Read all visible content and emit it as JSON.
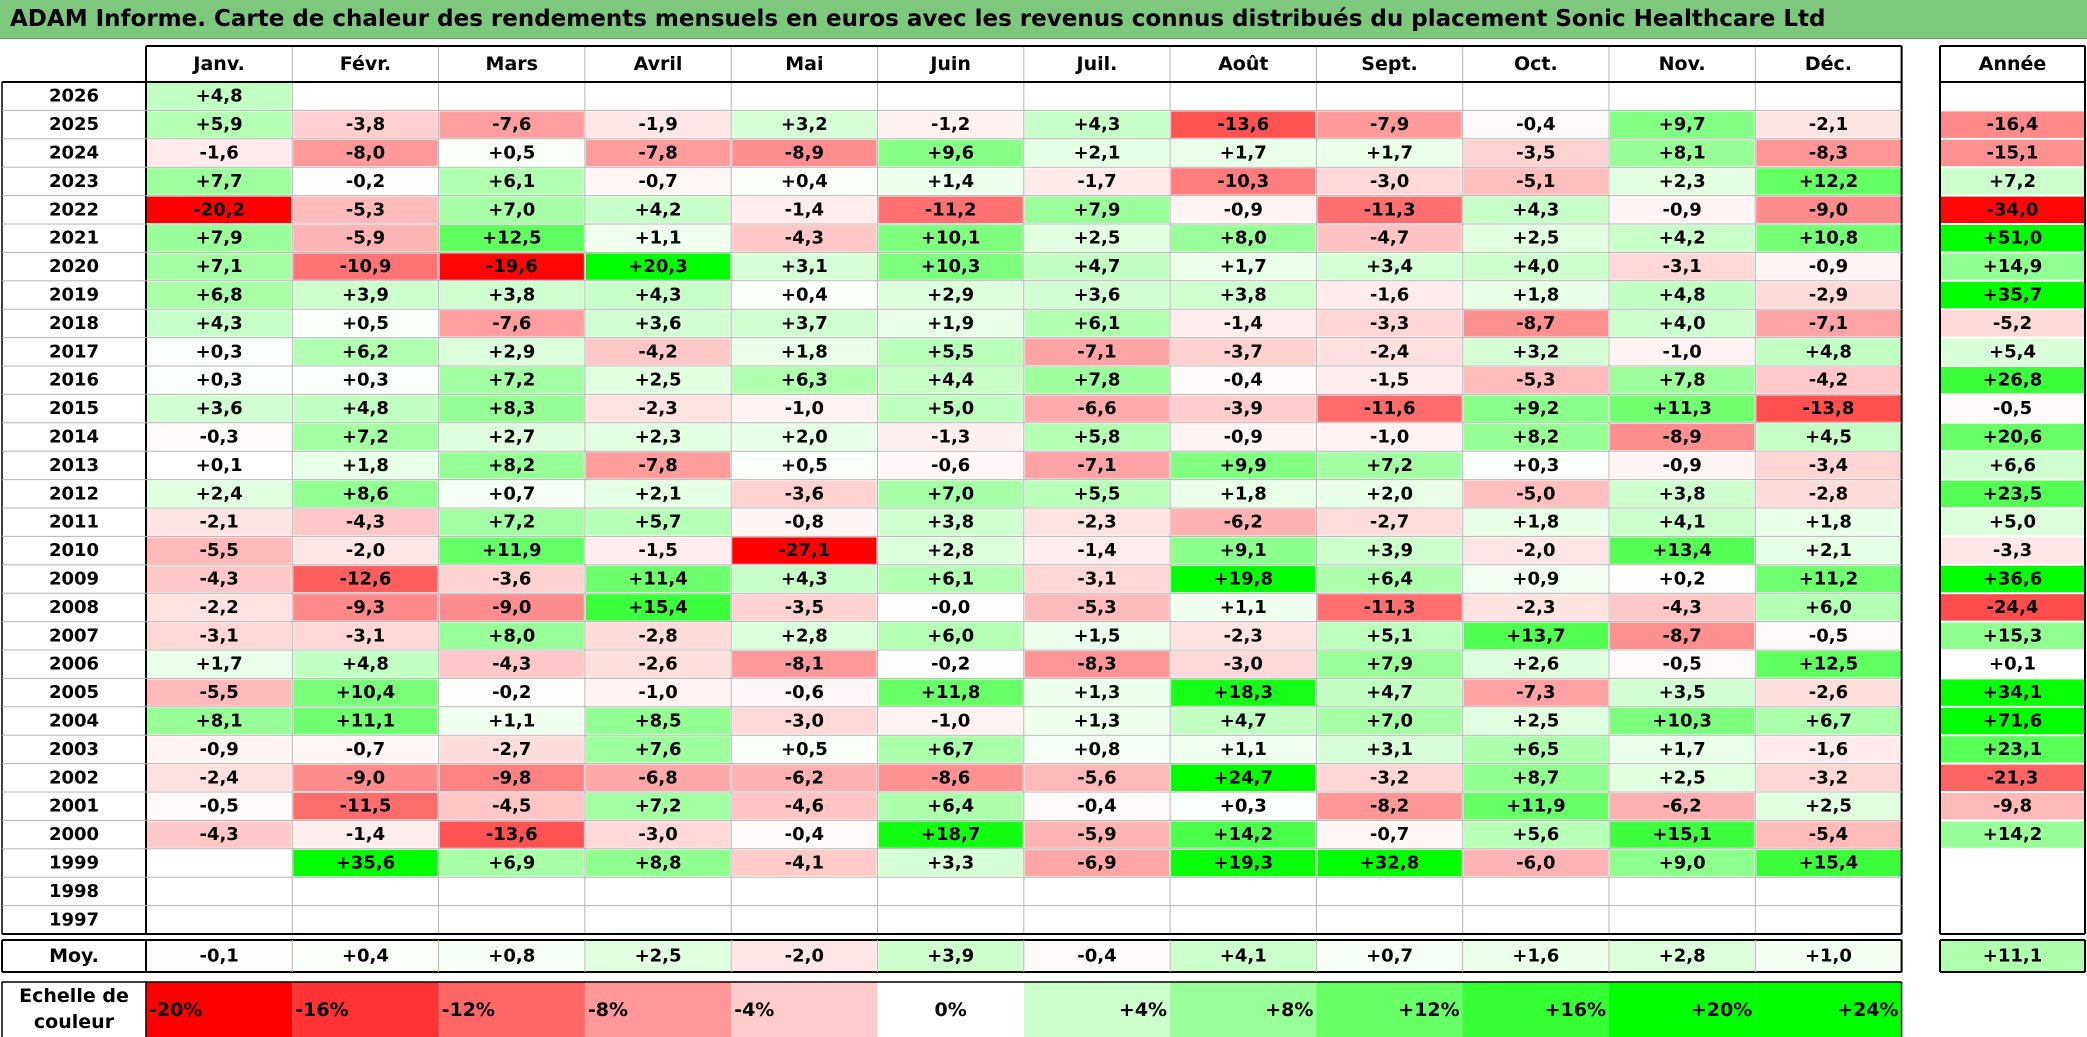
{
  "title": "ADAM Informe. Carte de chaleur des rendements mensuels en euros avec les revenus connus distribués du placement Sonic Healthcare Ltd",
  "chart_data": {
    "type": "heatmap",
    "months": [
      "Janv.",
      "Févr.",
      "Mars",
      "Avril",
      "Mai",
      "Juin",
      "Juil.",
      "Août",
      "Sept.",
      "Oct.",
      "Nov.",
      "Déc."
    ],
    "year_header": "Année",
    "rows": [
      {
        "year": "2026",
        "values": [
          "+4,8",
          "",
          "",
          "",
          "",
          "",
          "",
          "",
          "",
          "",
          "",
          ""
        ],
        "annual": ""
      },
      {
        "year": "2025",
        "values": [
          "+5,9",
          "-3,8",
          "-7,6",
          "-1,9",
          "+3,2",
          "-1,2",
          "+4,3",
          "-13,6",
          "-7,9",
          "-0,4",
          "+9,7",
          "-2,1"
        ],
        "annual": "-16,4"
      },
      {
        "year": "2024",
        "values": [
          "-1,6",
          "-8,0",
          "+0,5",
          "-7,8",
          "-8,9",
          "+9,6",
          "+2,1",
          "+1,7",
          "+1,7",
          "-3,5",
          "+8,1",
          "-8,3"
        ],
        "annual": "-15,1"
      },
      {
        "year": "2023",
        "values": [
          "+7,7",
          "-0,2",
          "+6,1",
          "-0,7",
          "+0,4",
          "+1,4",
          "-1,7",
          "-10,3",
          "-3,0",
          "-5,1",
          "+2,3",
          "+12,2"
        ],
        "annual": "+7,2"
      },
      {
        "year": "2022",
        "values": [
          "-20,2",
          "-5,3",
          "+7,0",
          "+4,2",
          "-1,4",
          "-11,2",
          "+7,9",
          "-0,9",
          "-11,3",
          "+4,3",
          "-0,9",
          "-9,0"
        ],
        "annual": "-34,0"
      },
      {
        "year": "2021",
        "values": [
          "+7,9",
          "-5,9",
          "+12,5",
          "+1,1",
          "-4,3",
          "+10,1",
          "+2,5",
          "+8,0",
          "-4,7",
          "+2,5",
          "+4,2",
          "+10,8"
        ],
        "annual": "+51,0"
      },
      {
        "year": "2020",
        "values": [
          "+7,1",
          "-10,9",
          "-19,6",
          "+20,3",
          "+3,1",
          "+10,3",
          "+4,7",
          "+1,7",
          "+3,4",
          "+4,0",
          "-3,1",
          "-0,9"
        ],
        "annual": "+14,9"
      },
      {
        "year": "2019",
        "values": [
          "+6,8",
          "+3,9",
          "+3,8",
          "+4,3",
          "+0,4",
          "+2,9",
          "+3,6",
          "+3,8",
          "-1,6",
          "+1,8",
          "+4,8",
          "-2,9"
        ],
        "annual": "+35,7"
      },
      {
        "year": "2018",
        "values": [
          "+4,3",
          "+0,5",
          "-7,6",
          "+3,6",
          "+3,7",
          "+1,9",
          "+6,1",
          "-1,4",
          "-3,3",
          "-8,7",
          "+4,0",
          "-7,1"
        ],
        "annual": "-5,2"
      },
      {
        "year": "2017",
        "values": [
          "+0,3",
          "+6,2",
          "+2,9",
          "-4,2",
          "+1,8",
          "+5,5",
          "-7,1",
          "-3,7",
          "-2,4",
          "+3,2",
          "-1,0",
          "+4,8"
        ],
        "annual": "+5,4"
      },
      {
        "year": "2016",
        "values": [
          "+0,3",
          "+0,3",
          "+7,2",
          "+2,5",
          "+6,3",
          "+4,4",
          "+7,8",
          "-0,4",
          "-1,5",
          "-5,3",
          "+7,8",
          "-4,2"
        ],
        "annual": "+26,8"
      },
      {
        "year": "2015",
        "values": [
          "+3,6",
          "+4,8",
          "+8,3",
          "-2,3",
          "-1,0",
          "+5,0",
          "-6,6",
          "-3,9",
          "-11,6",
          "+9,2",
          "+11,3",
          "-13,8"
        ],
        "annual": "-0,5"
      },
      {
        "year": "2014",
        "values": [
          "-0,3",
          "+7,2",
          "+2,7",
          "+2,3",
          "+2,0",
          "-1,3",
          "+5,8",
          "-0,9",
          "-1,0",
          "+8,2",
          "-8,9",
          "+4,5"
        ],
        "annual": "+20,6"
      },
      {
        "year": "2013",
        "values": [
          "+0,1",
          "+1,8",
          "+8,2",
          "-7,8",
          "+0,5",
          "-0,6",
          "-7,1",
          "+9,9",
          "+7,2",
          "+0,3",
          "-0,9",
          "-3,4"
        ],
        "annual": "+6,6"
      },
      {
        "year": "2012",
        "values": [
          "+2,4",
          "+8,6",
          "+0,7",
          "+2,1",
          "-3,6",
          "+7,0",
          "+5,5",
          "+1,8",
          "+2,0",
          "-5,0",
          "+3,8",
          "-2,8"
        ],
        "annual": "+23,5"
      },
      {
        "year": "2011",
        "values": [
          "-2,1",
          "-4,3",
          "+7,2",
          "+5,7",
          "-0,8",
          "+3,8",
          "-2,3",
          "-6,2",
          "-2,7",
          "+1,8",
          "+4,1",
          "+1,8"
        ],
        "annual": "+5,0"
      },
      {
        "year": "2010",
        "values": [
          "-5,5",
          "-2,0",
          "+11,9",
          "-1,5",
          "-27,1",
          "+2,8",
          "-1,4",
          "+9,1",
          "+3,9",
          "-2,0",
          "+13,4",
          "+2,1"
        ],
        "annual": "-3,3"
      },
      {
        "year": "2009",
        "values": [
          "-4,3",
          "-12,6",
          "-3,6",
          "+11,4",
          "+4,3",
          "+6,1",
          "-3,1",
          "+19,8",
          "+6,4",
          "+0,9",
          "+0,2",
          "+11,2"
        ],
        "annual": "+36,6"
      },
      {
        "year": "2008",
        "values": [
          "-2,2",
          "-9,3",
          "-9,0",
          "+15,4",
          "-3,5",
          "-0,0",
          "-5,3",
          "+1,1",
          "-11,3",
          "-2,3",
          "-4,3",
          "+6,0"
        ],
        "annual": "-24,4"
      },
      {
        "year": "2007",
        "values": [
          "-3,1",
          "-3,1",
          "+8,0",
          "-2,8",
          "+2,8",
          "+6,0",
          "+1,5",
          "-2,3",
          "+5,1",
          "+13,7",
          "-8,7",
          "-0,5"
        ],
        "annual": "+15,3"
      },
      {
        "year": "2006",
        "values": [
          "+1,7",
          "+4,8",
          "-4,3",
          "-2,6",
          "-8,1",
          "-0,2",
          "-8,3",
          "-3,0",
          "+7,9",
          "+2,6",
          "-0,5",
          "+12,5"
        ],
        "annual": "+0,1"
      },
      {
        "year": "2005",
        "values": [
          "-5,5",
          "+10,4",
          "-0,2",
          "-1,0",
          "-0,6",
          "+11,8",
          "+1,3",
          "+18,3",
          "+4,7",
          "-7,3",
          "+3,5",
          "-2,6"
        ],
        "annual": "+34,1"
      },
      {
        "year": "2004",
        "values": [
          "+8,1",
          "+11,1",
          "+1,1",
          "+8,5",
          "-3,0",
          "-1,0",
          "+1,3",
          "+4,7",
          "+7,0",
          "+2,5",
          "+10,3",
          "+6,7"
        ],
        "annual": "+71,6"
      },
      {
        "year": "2003",
        "values": [
          "-0,9",
          "-0,7",
          "-2,7",
          "+7,6",
          "+0,5",
          "+6,7",
          "+0,8",
          "+1,1",
          "+3,1",
          "+6,5",
          "+1,7",
          "-1,6"
        ],
        "annual": "+23,1"
      },
      {
        "year": "2002",
        "values": [
          "-2,4",
          "-9,0",
          "-9,8",
          "-6,8",
          "-6,2",
          "-8,6",
          "-5,6",
          "+24,7",
          "-3,2",
          "+8,7",
          "+2,5",
          "-3,2"
        ],
        "annual": "-21,3"
      },
      {
        "year": "2001",
        "values": [
          "-0,5",
          "-11,5",
          "-4,5",
          "+7,2",
          "-4,6",
          "+6,4",
          "-0,4",
          "+0,3",
          "-8,2",
          "+11,9",
          "-6,2",
          "+2,5"
        ],
        "annual": "-9,8"
      },
      {
        "year": "2000",
        "values": [
          "-4,3",
          "-1,4",
          "-13,6",
          "-3,0",
          "-0,4",
          "+18,7",
          "-5,9",
          "+14,2",
          "-0,7",
          "+5,6",
          "+15,1",
          "-5,4"
        ],
        "annual": "+14,2"
      },
      {
        "year": "1999",
        "values": [
          "",
          "+35,6",
          "+6,9",
          "+8,8",
          "-4,1",
          "+3,3",
          "-6,9",
          "+19,3",
          "+32,8",
          "-6,0",
          "+9,0",
          "+15,4"
        ],
        "annual": ""
      },
      {
        "year": "1998",
        "values": [
          "",
          "",
          "",
          "",
          "",
          "",
          "",
          "",
          "",
          "",
          "",
          ""
        ],
        "annual": ""
      },
      {
        "year": "1997",
        "values": [
          "",
          "",
          "",
          "",
          "",
          "",
          "",
          "",
          "",
          "",
          "",
          ""
        ],
        "annual": ""
      }
    ],
    "average": {
      "label": "Moy.",
      "values": [
        "-0,1",
        "+0,4",
        "+0,8",
        "+2,5",
        "-2,0",
        "+3,9",
        "-0,4",
        "+4,1",
        "+0,7",
        "+1,6",
        "+2,8",
        "+1,0"
      ],
      "annual": "+11,1"
    },
    "scale": {
      "label": [
        "Echelle de",
        "couleur"
      ],
      "entries": [
        {
          "label": "-20%",
          "value": -20
        },
        {
          "label": "-16%",
          "value": -16
        },
        {
          "label": "-12%",
          "value": -12
        },
        {
          "label": "-8%",
          "value": -8
        },
        {
          "label": "-4%",
          "value": -4
        },
        {
          "label": "0%",
          "value": 0
        },
        {
          "label": "+4%",
          "value": 4
        },
        {
          "label": "+8%",
          "value": 8
        },
        {
          "label": "+12%",
          "value": 12
        },
        {
          "label": "+16%",
          "value": 16
        },
        {
          "label": "+20%",
          "value": 20
        },
        {
          "label": "+24%",
          "value": 24
        }
      ]
    },
    "colors": {
      "negative_max": "#ff0000",
      "neutral": "#ffffff",
      "positive_max": "#00ff00"
    }
  }
}
